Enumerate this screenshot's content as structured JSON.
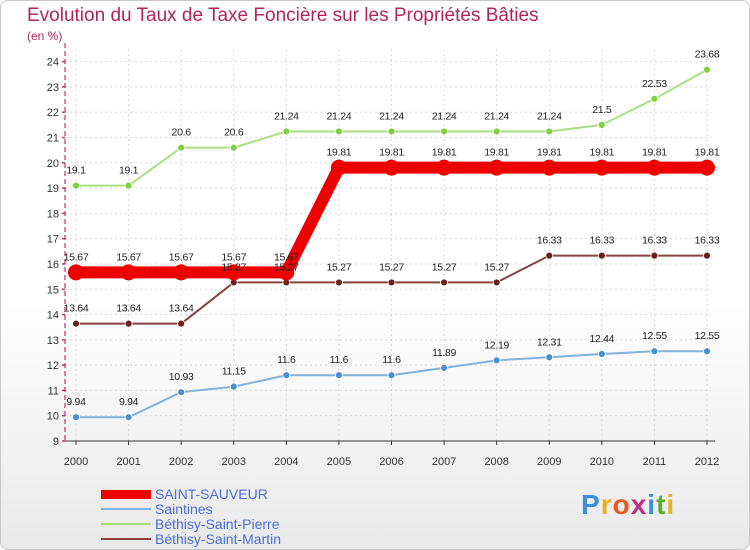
{
  "title": "Evolution du Taux de Taxe Foncière sur les Propriétés Bâties",
  "unit": "(en %)",
  "logo": {
    "letters": [
      "P",
      "r",
      "o",
      "x",
      "i",
      "t",
      "i"
    ],
    "colors": [
      "#3a8fd8",
      "#e8b020",
      "#e85a20",
      "#c03080",
      "#3a8fd8",
      "#60b030",
      "#e8b020"
    ]
  },
  "chart_data": {
    "type": "line",
    "title": "Evolution du Taux de Taxe Foncière sur les Propriétés Bâties",
    "ylabel": "(en %)",
    "xlabel": "",
    "ylim": [
      9,
      24.5
    ],
    "yticks": [
      9,
      10,
      11,
      12,
      13,
      14,
      15,
      16,
      17,
      18,
      19,
      20,
      21,
      22,
      23,
      24
    ],
    "categories": [
      "2000",
      "2001",
      "2002",
      "2003",
      "2004",
      "2005",
      "2006",
      "2007",
      "2008",
      "2009",
      "2010",
      "2011",
      "2012"
    ],
    "series": [
      {
        "name": "SAINT-SAUVEUR",
        "color": "#ee0000",
        "width": 12,
        "markerFill": "#ee0000",
        "markerR": 8,
        "values": [
          15.67,
          15.67,
          15.67,
          15.67,
          15.67,
          19.81,
          19.81,
          19.81,
          19.81,
          19.81,
          19.81,
          19.81,
          19.81
        ],
        "labels": [
          "15.67",
          "15.67",
          "15.67",
          "15.67",
          "15.67",
          "19.81",
          "19.81",
          "19.81",
          "19.81",
          "19.81",
          "19.81",
          "19.81",
          "19.81"
        ]
      },
      {
        "name": "Saintines",
        "color": "#7fb3dd",
        "width": 2,
        "markerFill": "#4a90d0",
        "markerR": 3.5,
        "values": [
          9.94,
          9.94,
          10.93,
          11.15,
          11.6,
          11.6,
          11.6,
          11.89,
          12.19,
          12.31,
          12.44,
          12.55,
          12.55
        ],
        "labels": [
          "9.94",
          "9.94",
          "10.93",
          "11.15",
          "11.6",
          "11.6",
          "11.6",
          "11.89",
          "12.19",
          "12.31",
          "12.44",
          "12.55",
          "12.55"
        ]
      },
      {
        "name": "Béthisy-Saint-Pierre",
        "color": "#a8e080",
        "width": 2,
        "markerFill": "#7ed040",
        "markerR": 3.5,
        "values": [
          19.1,
          19.1,
          20.6,
          20.6,
          21.24,
          21.24,
          21.24,
          21.24,
          21.24,
          21.24,
          21.5,
          22.53,
          23.68
        ],
        "labels": [
          "19.1",
          "19.1",
          "20.6",
          "20.6",
          "21.24",
          "21.24",
          "21.24",
          "21.24",
          "21.24",
          "21.24",
          "21.5",
          "22.53",
          "23.68"
        ]
      },
      {
        "name": "Béthisy-Saint-Martin",
        "color": "#8a4040",
        "width": 2,
        "markerFill": "#6b2020",
        "markerR": 3.5,
        "values": [
          13.64,
          13.64,
          13.64,
          15.27,
          15.27,
          15.27,
          15.27,
          15.27,
          15.27,
          16.33,
          16.33,
          16.33,
          16.33
        ],
        "labels": [
          "13.64",
          "13.64",
          "13.64",
          "15.27",
          "15.27",
          "15.27",
          "15.27",
          "15.27",
          "15.27",
          "16.33",
          "16.33",
          "16.33",
          "16.33"
        ]
      }
    ],
    "grid": true,
    "legend": "bottom-left"
  }
}
